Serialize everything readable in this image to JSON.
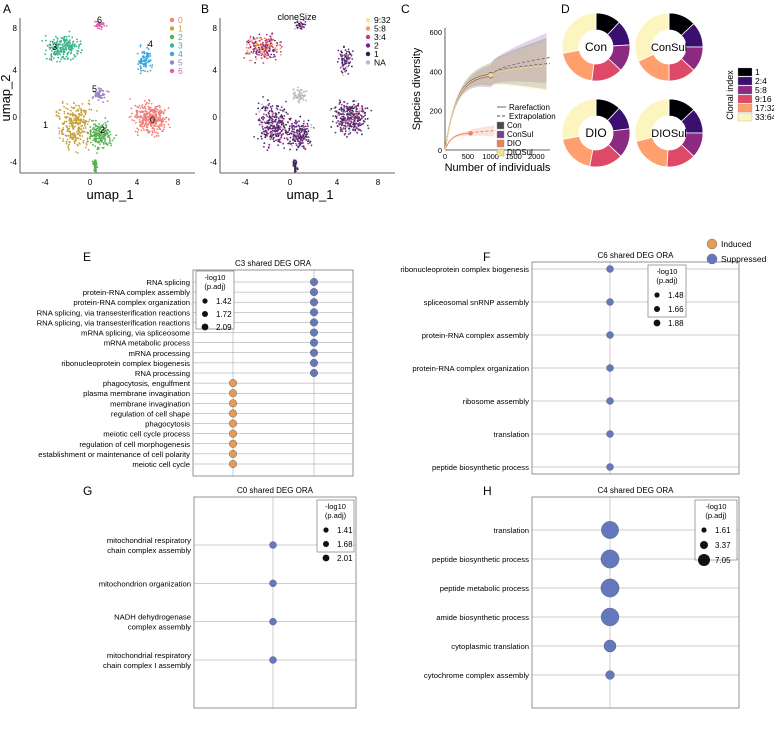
{
  "panels": {
    "A": "A",
    "B": "B",
    "C": "C",
    "D": "D",
    "E": "E",
    "F": "F",
    "G": "G",
    "H": "H"
  },
  "colors": {
    "induced": "#e39a5b",
    "suppressed": "#6479bd",
    "c0": "#ef7f79",
    "c1": "#c9a23d",
    "c2": "#55b04f",
    "c3": "#3cb38a",
    "c4": "#3aa6d8",
    "c5": "#9a84c8",
    "c6": "#e05db0"
  },
  "umapA": {
    "xlabel": "umap_1",
    "ylabel": "umap_2",
    "xticks": [
      "-4",
      "0",
      "4",
      "8"
    ],
    "yticks": [
      "8",
      "4",
      "0",
      "-4"
    ],
    "legend": [
      "0",
      "1",
      "2",
      "3",
      "4",
      "5",
      "6"
    ],
    "cluster_labels": [
      "0",
      "1",
      "2",
      "3",
      "4",
      "5",
      "6"
    ]
  },
  "umapB": {
    "title": "cloneSize",
    "xlabel": "umap_1",
    "xticks": [
      "-4",
      "0",
      "4",
      "8"
    ],
    "yticks": [
      "8",
      "4",
      "0",
      "-4"
    ],
    "legend": [
      "9:32",
      "5:8",
      "3:4",
      "2",
      "1",
      "NA"
    ],
    "legend_colors": [
      "#fbe3a0",
      "#f59a5a",
      "#c83c73",
      "#6a2c87",
      "#2a1f4a",
      "#bbbbbb"
    ]
  },
  "chart_data": [
    {
      "type": "line",
      "title": "",
      "xlabel": "Number of individuals",
      "ylabel": "Species diversity",
      "xlim": [
        0,
        2300
      ],
      "ylim": [
        0,
        620
      ],
      "xticks": [
        "0",
        "500",
        "1000",
        "1500",
        "2000"
      ],
      "yticks": [
        "0",
        "200",
        "400",
        "600"
      ],
      "line_legend": [
        "Rarefaction",
        "Extrapolation"
      ],
      "series": [
        {
          "name": "Con",
          "color": "#4a4a4a",
          "observed": [
            1000,
            385
          ],
          "end": [
            2300,
            440
          ]
        },
        {
          "name": "ConSul",
          "color": "#7b3f8c",
          "observed": [
            1000,
            375
          ],
          "end": [
            2300,
            470
          ]
        },
        {
          "name": "DIO",
          "color": "#f08050",
          "observed": [
            560,
            85
          ],
          "end": [
            1120,
            98
          ]
        },
        {
          "name": "DIOSul",
          "color": "#f4e27d",
          "observed": [
            1000,
            380
          ],
          "end": [
            2300,
            430
          ]
        }
      ]
    },
    {
      "type": "pie",
      "groups": [
        "Con",
        "ConSul",
        "DIO",
        "DIOSul"
      ],
      "legend_title": "Clonal index",
      "categories": [
        "1",
        "2:4",
        "5:8",
        "9:16",
        "17:32",
        "33:64"
      ],
      "colors": [
        "#000004",
        "#3b0f70",
        "#8c2981",
        "#de4968",
        "#fe9f6d",
        "#fcf5c0"
      ],
      "values": [
        [
          12,
          12,
          13,
          15,
          20,
          28
        ],
        [
          13,
          12,
          12,
          13,
          18,
          32
        ],
        [
          12,
          11,
          14,
          16,
          19,
          28
        ],
        [
          13,
          12,
          12,
          14,
          20,
          29
        ]
      ]
    },
    {
      "type": "scatter",
      "title": "C3 shared DEG ORA",
      "size_title": "-log10 (p.adj)",
      "size_legend": [
        "1.42",
        "1.72",
        "2.09"
      ],
      "categories": [
        "RNA splicing",
        "protein-RNA complex assembly",
        "protein-RNA complex organization",
        "RNA splicing, via transesterification reactions",
        "RNA splicing, via transesterification reactions",
        "mRNA splicing, via spliceosome",
        "mRNA metabolic process",
        "mRNA processing",
        "ribonucleoprotein complex biogenesis",
        "RNA processing",
        "phagocytosis, engulfment",
        "plasma membrane invagination",
        "membrane invagination",
        "regulation of cell shape",
        "phagocytosis",
        "meiotic cell cycle process",
        "regulation of cell morphogenesis",
        "establishment or maintenance of cell polarity",
        "meiotic cell cycle"
      ],
      "group": [
        "S",
        "S",
        "S",
        "S",
        "S",
        "S",
        "S",
        "S",
        "S",
        "S",
        "I",
        "I",
        "I",
        "I",
        "I",
        "I",
        "I",
        "I",
        "I"
      ]
    },
    {
      "type": "scatter",
      "title": "C6 shared DEG ORA",
      "size_title": "-log10 (p.adj)",
      "size_legend": [
        "1.48",
        "1.66",
        "1.88"
      ],
      "categories": [
        "ribonucleoprotein complex biogenesis",
        "spliceosomal snRNP assembly",
        "protein-RNA complex assembly",
        "protein-RNA complex organization",
        "ribosome assembly",
        "translation",
        "peptide biosynthetic process"
      ],
      "group": [
        "S",
        "S",
        "S",
        "S",
        "S",
        "S",
        "S"
      ]
    },
    {
      "type": "scatter",
      "title": "C0 shared DEG ORA",
      "size_title": "-log10 (p.adj)",
      "size_legend": [
        "1.41",
        "1.68",
        "2.01"
      ],
      "categories": [
        [
          "mitochondrial respiratory",
          "chain complex assembly"
        ],
        [
          "mitochondrion organization"
        ],
        [
          "NADH dehydrogenase",
          "complex assembly"
        ],
        [
          "mitochondrial respiratory",
          "chain complex I assembly"
        ]
      ],
      "group": [
        "S",
        "S",
        "S",
        "S"
      ]
    },
    {
      "type": "scatter",
      "title": "C4 shared DEG ORA",
      "size_title": "-log10 (p.adj)",
      "size_legend": [
        "1.61",
        "3.37",
        "7.05"
      ],
      "categories": [
        "translation",
        "peptide biosynthetic process",
        "peptide metabolic process",
        "amide biosynthetic process",
        "cytoplasmic translation",
        "cytochrome complex assembly"
      ],
      "values": [
        6.5,
        7.0,
        7.0,
        6.8,
        3.6,
        1.8
      ],
      "group": [
        "S",
        "S",
        "S",
        "S",
        "S",
        "S"
      ]
    }
  ],
  "ora_legend": {
    "induced": "Induced",
    "suppressed": "Suppressed"
  }
}
